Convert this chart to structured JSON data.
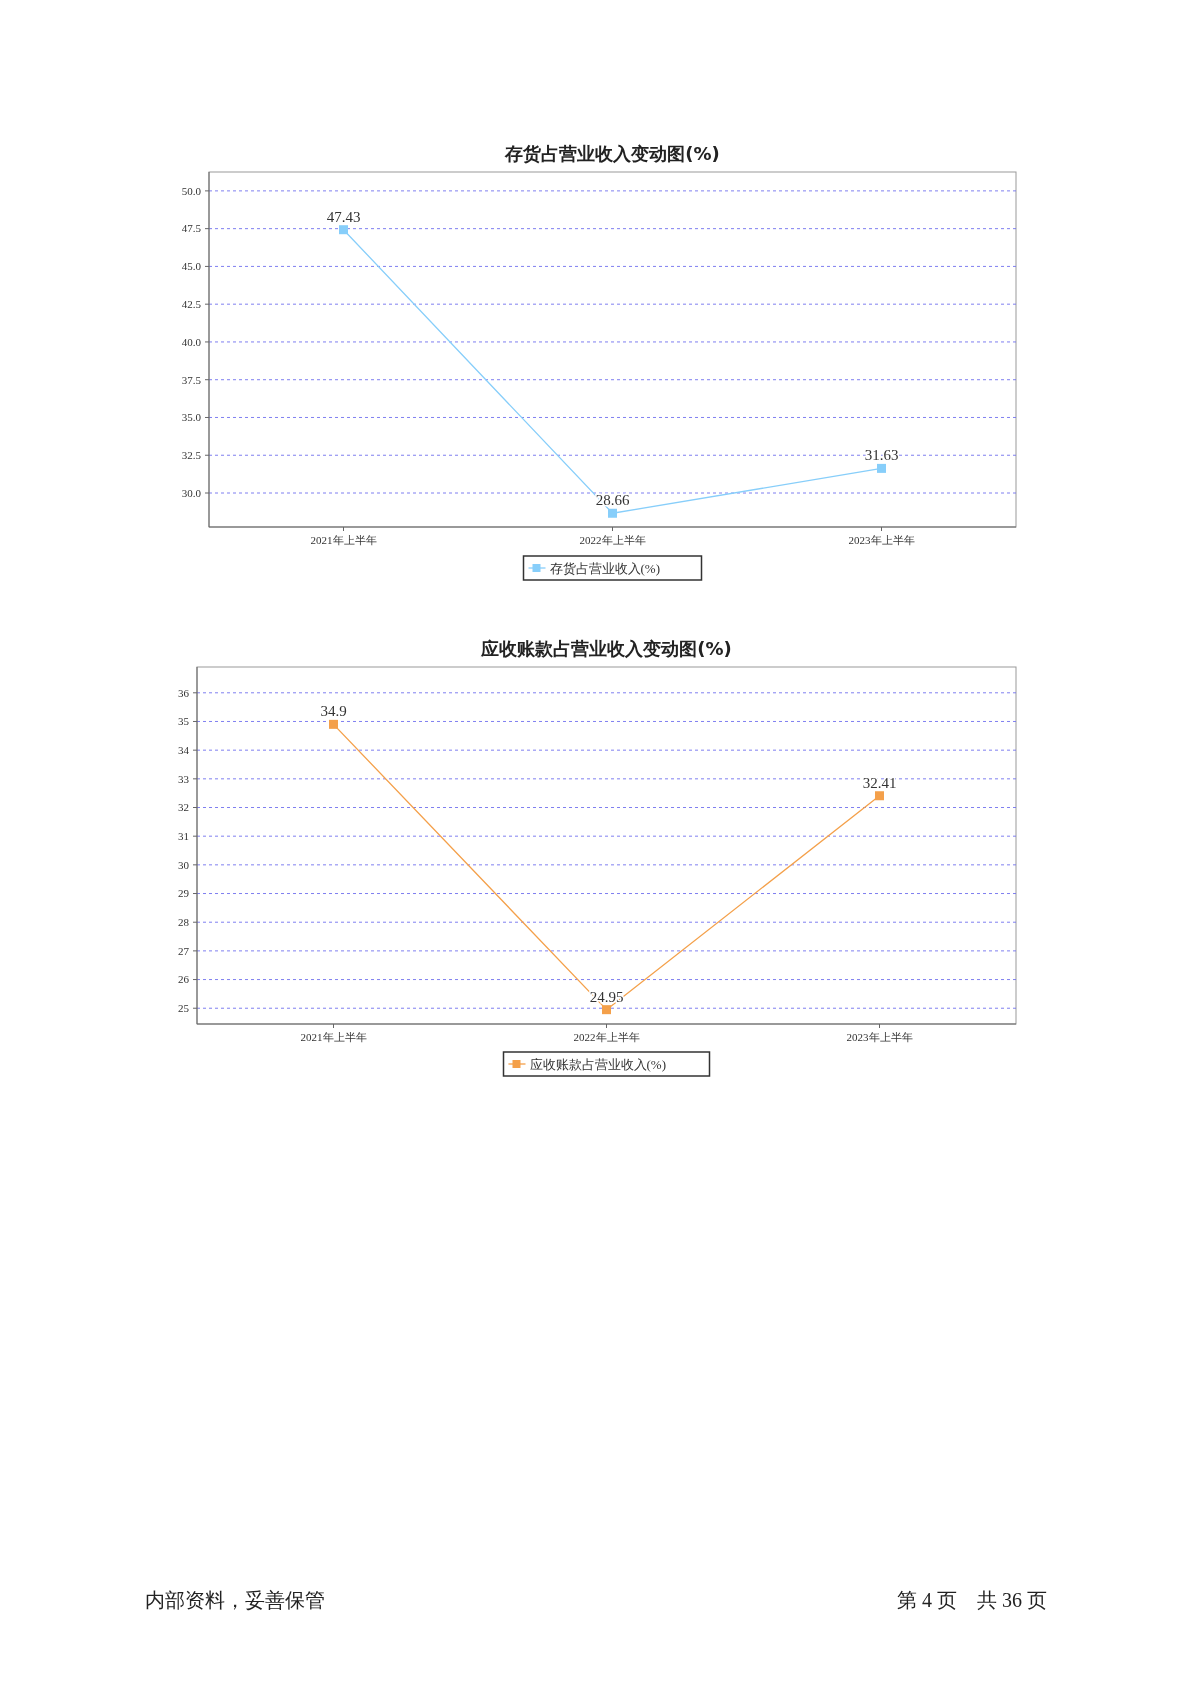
{
  "chart_data": [
    {
      "type": "line",
      "title": "存货占营业收入变动图(%)",
      "categories": [
        "2021年上半年",
        "2022年上半年",
        "2023年上半年"
      ],
      "series": [
        {
          "name": "存货占营业收入(%)",
          "color": "#87cefa",
          "values": [
            47.43,
            28.66,
            31.63
          ]
        }
      ],
      "ylim": [
        27.75,
        51.25
      ],
      "yticks": [
        {
          "value": 30,
          "label": "30.0"
        },
        {
          "value": 32.5,
          "label": "32.5"
        },
        {
          "value": 35,
          "label": "35.0"
        },
        {
          "value": 37.5,
          "label": "37.5"
        },
        {
          "value": 40,
          "label": "40.0"
        },
        {
          "value": 42.5,
          "label": "42.5"
        },
        {
          "value": 45,
          "label": "45.0"
        },
        {
          "value": 47.5,
          "label": "47.5"
        },
        {
          "value": 50,
          "label": "50.0"
        }
      ],
      "grid": "y",
      "legend": "bottom",
      "marker": "square",
      "line_style": "solid",
      "data_labels": true
    },
    {
      "type": "line",
      "title": "应收账款占营业收入变动图(%)",
      "categories": [
        "2021年上半年",
        "2022年上半年",
        "2023年上半年"
      ],
      "series": [
        {
          "name": "应收账款占营业收入(%)",
          "color": "#f4a04a",
          "values": [
            34.9,
            24.95,
            32.41
          ]
        }
      ],
      "ylim": [
        24.45,
        36.9
      ],
      "yticks": [
        25,
        26,
        27,
        28,
        29,
        30,
        31,
        32,
        33,
        34,
        35,
        36
      ],
      "grid": "y",
      "legend": "bottom",
      "marker": "square",
      "line_style": "solid",
      "data_labels": true,
      "annotations": [
        "内部资料，妥善保管",
        "第 4 页　共 36 页"
      ]
    }
  ]
}
